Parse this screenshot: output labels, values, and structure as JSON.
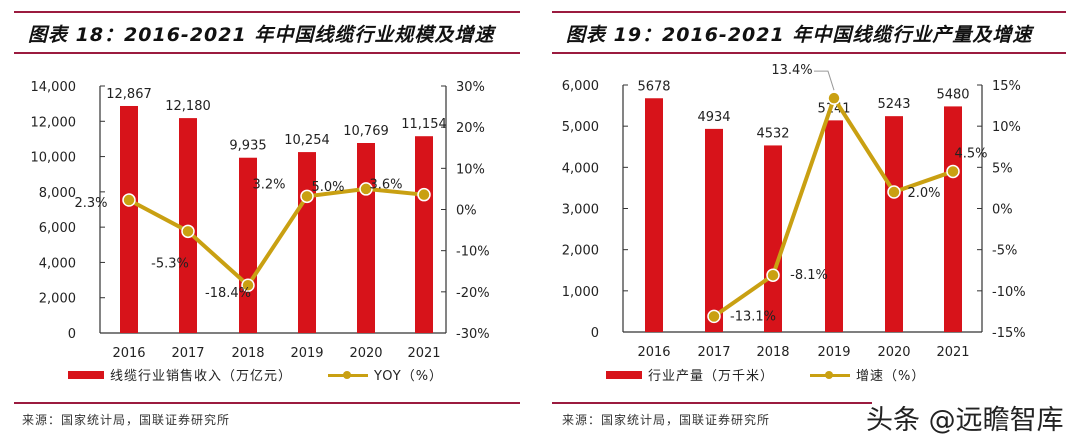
{
  "colors": {
    "bar": "#d7131a",
    "line": "#c9a012",
    "rule": "#9b1b3f",
    "axis": "#333333"
  },
  "watermark": "头条 @远瞻智库",
  "chart_data": [
    {
      "type": "bar+line",
      "title": "图表 18：2016-2021 年中国线缆行业规模及增速",
      "categories": [
        "2016",
        "2017",
        "2018",
        "2019",
        "2020",
        "2021"
      ],
      "series": [
        {
          "name": "线缆行业销售收入（万亿元）",
          "type": "bar",
          "axis": "left",
          "values": [
            12867,
            12180,
            9935,
            10254,
            10769,
            11154
          ],
          "labels": [
            "12,867",
            "12,180",
            "9,935",
            "10,254",
            "10,769",
            "11,154"
          ]
        },
        {
          "name": "YOY（%）",
          "type": "line",
          "axis": "right",
          "values": [
            2.3,
            -5.3,
            -18.4,
            3.2,
            5.0,
            3.6
          ],
          "labels": [
            "2.3%",
            "-5.3%",
            "-18.4%",
            "3.2%",
            "5.0%",
            "3.6%"
          ]
        }
      ],
      "ylim": [
        0,
        14000
      ],
      "yticks": [
        "0",
        "2,000",
        "4,000",
        "6,000",
        "8,000",
        "10,000",
        "12,000",
        "14,000"
      ],
      "y2lim": [
        -30,
        30
      ],
      "y2ticks": [
        "-30%",
        "-20%",
        "-10%",
        "0%",
        "10%",
        "20%",
        "30%"
      ],
      "legend": "bottom",
      "grid": false,
      "source": "来源：国家统计局，国联证券研究所"
    },
    {
      "type": "bar+line",
      "title": "图表 19：2016-2021 年中国线缆行业产量及增速",
      "categories": [
        "2016",
        "2017",
        "2018",
        "2019",
        "2020",
        "2021"
      ],
      "series": [
        {
          "name": "行业产量（万千米）",
          "type": "bar",
          "axis": "left",
          "values": [
            5678,
            4934,
            4532,
            5141,
            5243,
            5480
          ],
          "labels": [
            "5678",
            "4934",
            "4532",
            "5141",
            "5243",
            "5480"
          ]
        },
        {
          "name": "增速（%）",
          "type": "line",
          "axis": "right",
          "values": [
            null,
            -13.1,
            -8.1,
            13.4,
            2.0,
            4.5
          ],
          "labels": [
            "",
            "-13.1%",
            "-8.1%",
            "13.4%",
            "2.0%",
            "4.5%"
          ]
        }
      ],
      "ylim": [
        0,
        6000
      ],
      "yticks": [
        "0",
        "1,000",
        "2,000",
        "3,000",
        "4,000",
        "5,000",
        "6,000"
      ],
      "y2lim": [
        -15,
        15
      ],
      "y2ticks": [
        "-15%",
        "-10%",
        "-5%",
        "0%",
        "5%",
        "10%",
        "15%"
      ],
      "legend": "bottom",
      "grid": false,
      "source": "来源：国家统计局，国联证券研究所"
    }
  ]
}
